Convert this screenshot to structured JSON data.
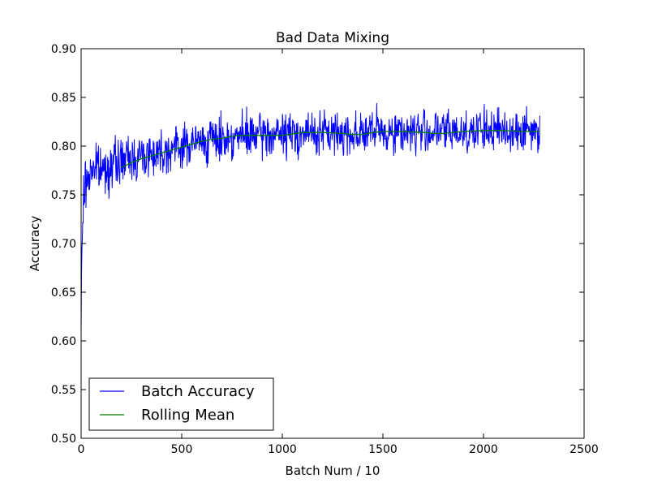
{
  "chart_data": {
    "type": "line",
    "title": "Bad Data Mixing",
    "xlabel": "Batch Num / 10",
    "ylabel": "Accuracy",
    "xlim": [
      0,
      2500
    ],
    "ylim": [
      0.5,
      0.9
    ],
    "xticks": [
      "0",
      "500",
      "1000",
      "1500",
      "2000",
      "2500"
    ],
    "yticks": [
      "0.50",
      "0.55",
      "0.60",
      "0.65",
      "0.70",
      "0.75",
      "0.80",
      "0.85",
      "0.90"
    ],
    "grid": false,
    "legend_position": "lower-left",
    "series": [
      {
        "name": "Batch Accuracy",
        "color": "#0000ff",
        "x": [
          0,
          5,
          10,
          20,
          40,
          60,
          100,
          150,
          200,
          300,
          400,
          500,
          600,
          700,
          800,
          900,
          1000,
          1100,
          1200,
          1300,
          1400,
          1500,
          1600,
          1700,
          1800,
          1900,
          2000,
          2100,
          2200,
          2280
        ],
        "values": [
          0.61,
          0.7,
          0.74,
          0.76,
          0.77,
          0.78,
          0.775,
          0.78,
          0.785,
          0.79,
          0.795,
          0.8,
          0.805,
          0.808,
          0.81,
          0.811,
          0.812,
          0.813,
          0.813,
          0.813,
          0.814,
          0.815,
          0.815,
          0.815,
          0.815,
          0.815,
          0.816,
          0.816,
          0.816,
          0.816
        ],
        "noise_band": [
          0.05,
          0.05,
          0.04,
          0.04,
          0.035,
          0.035,
          0.035,
          0.035,
          0.035,
          0.035,
          0.033,
          0.033,
          0.033,
          0.033,
          0.033,
          0.033,
          0.033,
          0.033,
          0.033,
          0.033,
          0.033,
          0.033,
          0.033,
          0.033,
          0.033,
          0.033,
          0.033,
          0.033,
          0.033,
          0.033
        ],
        "points": 1140,
        "seed": 7
      },
      {
        "name": "Rolling Mean",
        "color": "#008000",
        "x": [
          200,
          250,
          300,
          350,
          400,
          450,
          500,
          550,
          600,
          650,
          700,
          750,
          800,
          900,
          1000,
          1100,
          1200,
          1300,
          1350,
          1400,
          1450,
          1500,
          1600,
          1700,
          1750,
          1800,
          1900,
          2000,
          2100,
          2200,
          2280
        ],
        "values": [
          0.778,
          0.783,
          0.787,
          0.79,
          0.793,
          0.796,
          0.799,
          0.802,
          0.805,
          0.807,
          0.808,
          0.81,
          0.811,
          0.811,
          0.811,
          0.814,
          0.814,
          0.813,
          0.812,
          0.812,
          0.814,
          0.815,
          0.815,
          0.814,
          0.813,
          0.813,
          0.815,
          0.816,
          0.816,
          0.815,
          0.815
        ]
      }
    ]
  }
}
